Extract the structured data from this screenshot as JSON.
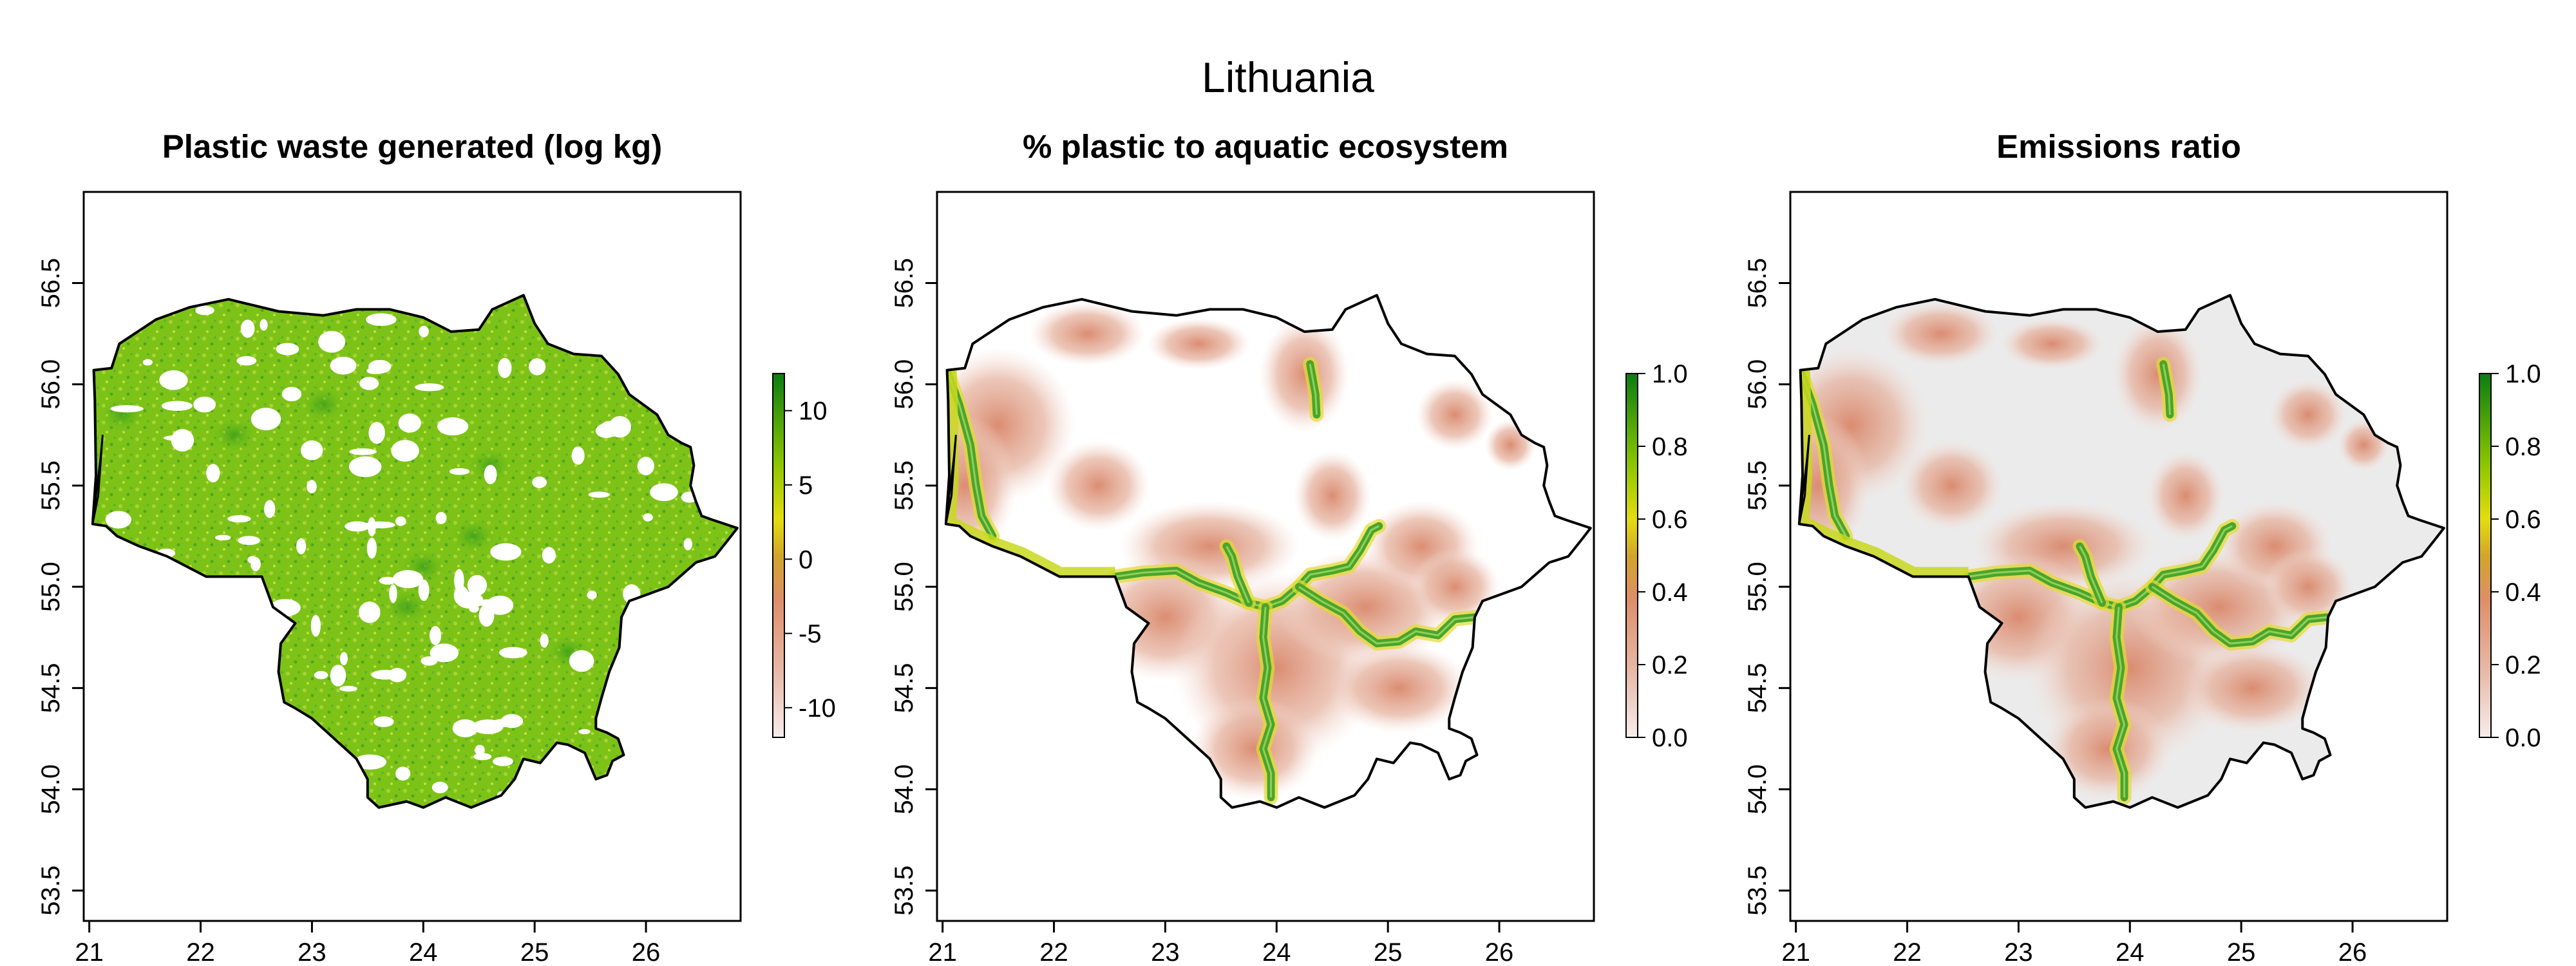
{
  "title": "Lithuania",
  "colors": {
    "scale_low": "#F7EDEC",
    "scale_1": "#E8B9A7",
    "scale_2": "#DE8E68",
    "scale_3": "#D2A52A",
    "scale_4": "#E4DD10",
    "scale_5": "#8CC600",
    "scale_high": "#0A7D12",
    "fill_green": "#7DC317",
    "fill_light_grey": "#EBEBEB",
    "river_green": "#5DB42A"
  },
  "chart_data": [
    {
      "type": "heatmap",
      "title": "Plastic waste generated (log kg)",
      "xlim": [
        20.95,
        26.85
      ],
      "ylim": [
        53.35,
        56.95
      ],
      "x_ticks": [
        "21",
        "22",
        "23",
        "24",
        "25",
        "26"
      ],
      "y_ticks": [
        "53.5",
        "54.0",
        "54.5",
        "55.0",
        "55.5",
        "56.0",
        "56.5"
      ],
      "legend": {
        "min": -12,
        "max": 12.5,
        "ticks": [
          "10",
          "5",
          "0",
          "-5",
          "-10"
        ],
        "tick_values": [
          10,
          5,
          0,
          -5,
          -10
        ]
      },
      "grid": false,
      "legend_placement": "right"
    },
    {
      "type": "heatmap",
      "title": "% plastic to aquatic ecosystem",
      "xlim": [
        20.95,
        26.85
      ],
      "ylim": [
        53.35,
        56.95
      ],
      "x_ticks": [
        "21",
        "22",
        "23",
        "24",
        "25",
        "26"
      ],
      "y_ticks": [
        "53.5",
        "54.0",
        "54.5",
        "55.0",
        "55.5",
        "56.0",
        "56.5"
      ],
      "legend": {
        "min": 0,
        "max": 1,
        "ticks": [
          "1.0",
          "0.8",
          "0.6",
          "0.4",
          "0.2",
          "0.0"
        ],
        "tick_values": [
          1,
          0.8,
          0.6,
          0.4,
          0.2,
          0
        ]
      },
      "grid": false,
      "legend_placement": "right"
    },
    {
      "type": "heatmap",
      "title": "Emissions ratio",
      "xlim": [
        20.95,
        26.85
      ],
      "ylim": [
        53.35,
        56.95
      ],
      "x_ticks": [
        "21",
        "22",
        "23",
        "24",
        "25",
        "26"
      ],
      "y_ticks": [
        "53.5",
        "54.0",
        "54.5",
        "55.0",
        "55.5",
        "56.0",
        "56.5"
      ],
      "legend": {
        "min": 0,
        "max": 1,
        "ticks": [
          "1.0",
          "0.8",
          "0.6",
          "0.4",
          "0.2",
          "0.0"
        ],
        "tick_values": [
          1,
          0.8,
          0.6,
          0.4,
          0.2,
          0
        ]
      },
      "grid": false,
      "legend_placement": "right"
    }
  ]
}
